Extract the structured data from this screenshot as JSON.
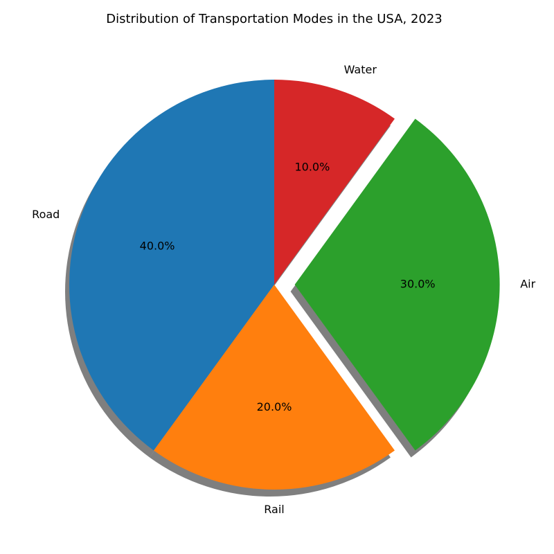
{
  "chart_data": {
    "type": "pie",
    "title": "Distribution of Transportation Modes in the USA, 2023",
    "categories": [
      "Road",
      "Rail",
      "Air",
      "Water"
    ],
    "values": [
      40,
      20,
      30,
      10
    ],
    "percent_labels": [
      "40.0%",
      "20.0%",
      "30.0%",
      "10.0%"
    ],
    "colors": [
      "#1f77b4",
      "#ff7f0e",
      "#2ca02c",
      "#d62728"
    ],
    "explode": [
      0,
      0,
      0.1,
      0
    ],
    "start_angle": 90,
    "direction": "counterclockwise",
    "shadow": true
  }
}
